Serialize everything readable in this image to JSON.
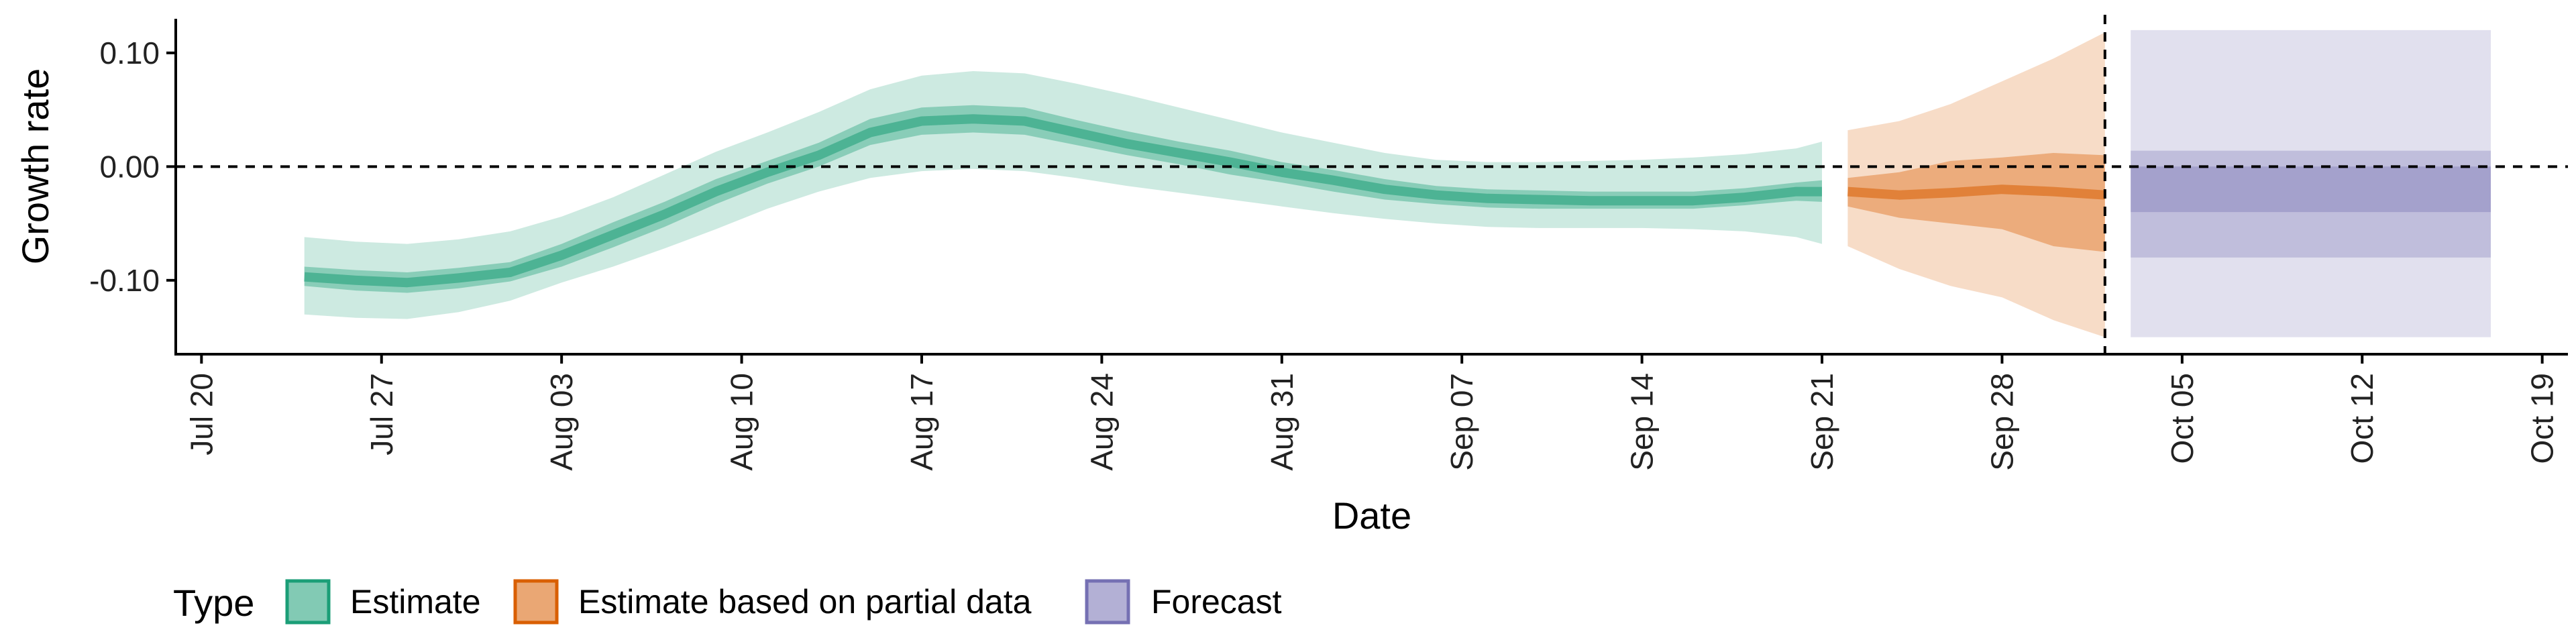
{
  "chart_data": {
    "type": "area",
    "xlabel": "Date",
    "ylabel": "Growth rate",
    "xlim": [
      "2020-07-19",
      "2020-10-20"
    ],
    "ylim": [
      -0.165,
      0.13
    ],
    "x_ticks": [
      "Jul 20",
      "Jul 27",
      "Aug 03",
      "Aug 10",
      "Aug 17",
      "Aug 24",
      "Aug 31",
      "Sep 07",
      "Sep 14",
      "Sep 21",
      "Sep 28",
      "Oct 05",
      "Oct 12",
      "Oct 19"
    ],
    "y_ticks": [
      "0.10",
      "0.00",
      "-0.10"
    ],
    "reference_lines": {
      "horizontal_y": 0.0,
      "vertical_date": "2020-10-02"
    },
    "legend": {
      "title": "Type",
      "position": "bottom-left",
      "entries": [
        "Estimate",
        "Estimate based on partial data",
        "Forecast"
      ]
    },
    "colors": {
      "Estimate": "#1b9e77",
      "Estimate based on partial data": "#d95f02",
      "Forecast": "#7570b3"
    },
    "series": [
      {
        "name": "Estimate",
        "x": [
          "2020-07-24",
          "2020-07-26",
          "2020-07-28",
          "2020-07-30",
          "2020-08-01",
          "2020-08-03",
          "2020-08-05",
          "2020-08-07",
          "2020-08-09",
          "2020-08-11",
          "2020-08-13",
          "2020-08-15",
          "2020-08-17",
          "2020-08-19",
          "2020-08-21",
          "2020-08-23",
          "2020-08-25",
          "2020-08-27",
          "2020-08-29",
          "2020-08-31",
          "2020-09-02",
          "2020-09-04",
          "2020-09-06",
          "2020-09-08",
          "2020-09-10",
          "2020-09-12",
          "2020-09-14",
          "2020-09-16",
          "2020-09-18",
          "2020-09-20",
          "2020-09-21"
        ],
        "median": [
          -0.097,
          -0.1,
          -0.102,
          -0.098,
          -0.093,
          -0.078,
          -0.06,
          -0.042,
          -0.022,
          -0.005,
          0.01,
          0.03,
          0.04,
          0.042,
          0.04,
          0.03,
          0.02,
          0.012,
          0.004,
          -0.005,
          -0.012,
          -0.02,
          -0.025,
          -0.028,
          -0.029,
          -0.03,
          -0.03,
          -0.03,
          -0.027,
          -0.022,
          -0.022
        ],
        "inner_lower": [
          -0.105,
          -0.109,
          -0.111,
          -0.107,
          -0.101,
          -0.088,
          -0.071,
          -0.053,
          -0.033,
          -0.015,
          0.0,
          0.019,
          0.028,
          0.03,
          0.028,
          0.019,
          0.01,
          0.002,
          -0.007,
          -0.014,
          -0.022,
          -0.029,
          -0.033,
          -0.036,
          -0.037,
          -0.037,
          -0.037,
          -0.037,
          -0.034,
          -0.03,
          -0.031
        ],
        "inner_upper": [
          -0.088,
          -0.091,
          -0.093,
          -0.089,
          -0.084,
          -0.068,
          -0.049,
          -0.031,
          -0.011,
          0.005,
          0.021,
          0.042,
          0.052,
          0.054,
          0.052,
          0.041,
          0.031,
          0.022,
          0.014,
          0.004,
          -0.003,
          -0.011,
          -0.017,
          -0.02,
          -0.021,
          -0.022,
          -0.022,
          -0.022,
          -0.019,
          -0.014,
          -0.012
        ],
        "outer_lower": [
          -0.13,
          -0.133,
          -0.134,
          -0.128,
          -0.118,
          -0.102,
          -0.088,
          -0.072,
          -0.055,
          -0.037,
          -0.022,
          -0.01,
          -0.004,
          -0.002,
          -0.004,
          -0.01,
          -0.017,
          -0.023,
          -0.029,
          -0.035,
          -0.041,
          -0.046,
          -0.05,
          -0.053,
          -0.054,
          -0.054,
          -0.054,
          -0.055,
          -0.057,
          -0.062,
          -0.068
        ],
        "outer_upper": [
          -0.062,
          -0.066,
          -0.068,
          -0.064,
          -0.057,
          -0.044,
          -0.027,
          -0.007,
          0.013,
          0.03,
          0.048,
          0.068,
          0.08,
          0.084,
          0.082,
          0.073,
          0.063,
          0.052,
          0.041,
          0.03,
          0.021,
          0.012,
          0.006,
          0.004,
          0.004,
          0.005,
          0.006,
          0.008,
          0.011,
          0.016,
          0.022
        ]
      },
      {
        "name": "Estimate based on partial data",
        "x": [
          "2020-09-22",
          "2020-09-24",
          "2020-09-26",
          "2020-09-28",
          "2020-09-30",
          "2020-10-02"
        ],
        "median": [
          -0.022,
          -0.025,
          -0.023,
          -0.02,
          -0.022,
          -0.025
        ],
        "inner_lower": [
          -0.035,
          -0.045,
          -0.05,
          -0.055,
          -0.07,
          -0.075
        ],
        "inner_upper": [
          -0.01,
          -0.005,
          0.005,
          0.008,
          0.012,
          0.01
        ],
        "outer_lower": [
          -0.07,
          -0.09,
          -0.105,
          -0.115,
          -0.135,
          -0.15
        ],
        "outer_upper": [
          0.032,
          0.04,
          0.055,
          0.075,
          0.095,
          0.118
        ]
      },
      {
        "name": "Forecast",
        "x": [
          "2020-10-03",
          "2020-10-17"
        ],
        "median": [
          -0.02,
          -0.02
        ],
        "inner_lower": [
          -0.04,
          -0.04
        ],
        "inner_upper": [
          0.0,
          0.0
        ],
        "outer_lower": [
          -0.08,
          -0.08
        ],
        "outer_upper": [
          0.014,
          0.014
        ],
        "full_lower": [
          -0.15,
          -0.15
        ],
        "full_upper": [
          0.12,
          0.12
        ]
      }
    ]
  }
}
